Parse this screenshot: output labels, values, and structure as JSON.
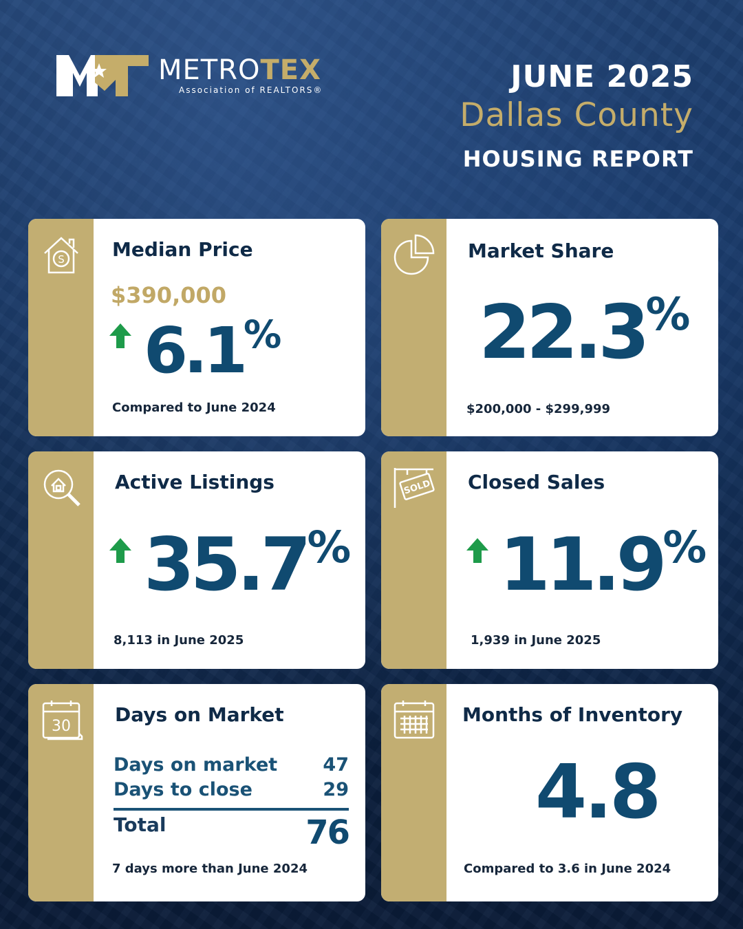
{
  "brand": {
    "name_white": "METRO",
    "name_gold": "TEX",
    "subtitle": "Association of REALTORS®",
    "colors": {
      "navy": "#0f2a47",
      "gold": "#c2ae72",
      "blue": "#104a70",
      "green": "#1e9b4a"
    }
  },
  "header": {
    "month": "JUNE 2025",
    "county": "Dallas County",
    "report": "HOUSING REPORT"
  },
  "cards": {
    "median_price": {
      "icon": "house-dollar-icon",
      "title": "Median Price",
      "price": "$390,000",
      "trend": "up",
      "value": "6.1",
      "unit": "%",
      "note": "Compared to June 2024"
    },
    "market_share": {
      "icon": "pie-chart-icon",
      "title": "Market Share",
      "value": "22.3",
      "unit": "%",
      "note": "$200,000 - $299,999"
    },
    "active_listings": {
      "icon": "house-search-icon",
      "title": "Active Listings",
      "trend": "up",
      "value": "35.7",
      "unit": "%",
      "note": "8,113 in June 2025"
    },
    "closed_sales": {
      "icon": "sold-sign-icon",
      "title": "Closed Sales",
      "trend": "up",
      "value": "11.9",
      "unit": "%",
      "note": "1,939 in June 2025"
    },
    "days_on_market": {
      "icon": "calendar-30-icon",
      "icon_text": "30",
      "title": "Days on Market",
      "rows": [
        {
          "label": "Days on market",
          "value": "47"
        },
        {
          "label": "Days to close",
          "value": "29"
        }
      ],
      "total_label": "Total",
      "total_value": "76",
      "note": "7 days more than June 2024"
    },
    "months_inventory": {
      "icon": "calendar-grid-icon",
      "title": "Months of Inventory",
      "value": "4.8",
      "note": "Compared to 3.6 in June 2024"
    }
  }
}
